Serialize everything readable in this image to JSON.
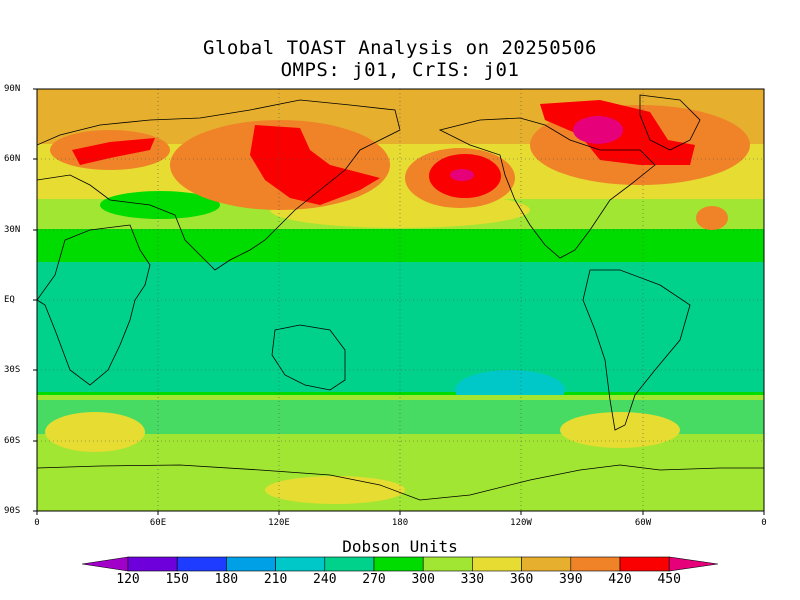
{
  "title_line1": "Global TOAST Analysis on 20250506",
  "title_line2": "OMPS: j01, CrIS: j01",
  "lat_labels": [
    "90N",
    "60N",
    "30N",
    "EQ",
    "30S",
    "60S",
    "90S"
  ],
  "lon_labels": [
    "0",
    "60E",
    "120E",
    "180",
    "120W",
    "60W",
    "0"
  ],
  "colorbar": {
    "title": "Dobson Units",
    "ticks": [
      "120",
      "150",
      "180",
      "210",
      "240",
      "270",
      "300",
      "330",
      "360",
      "390",
      "420",
      "450"
    ],
    "colors": [
      "#a000c8",
      "#6e00dc",
      "#1e3cff",
      "#00a0e6",
      "#00c8c8",
      "#00d28c",
      "#00dc00",
      "#a0e632",
      "#e6dc32",
      "#e6af2d",
      "#f08228",
      "#fa0000",
      "#e6007a"
    ]
  },
  "ozone_colors": {
    "v300": "#00dc00",
    "v270": "#00d28c",
    "v240": "#00c8c8",
    "v330": "#a0e632",
    "v360": "#e6dc32",
    "v390": "#e6af2d",
    "v420": "#f08228",
    "v450": "#fa0000",
    "v480": "#e6007a"
  }
}
